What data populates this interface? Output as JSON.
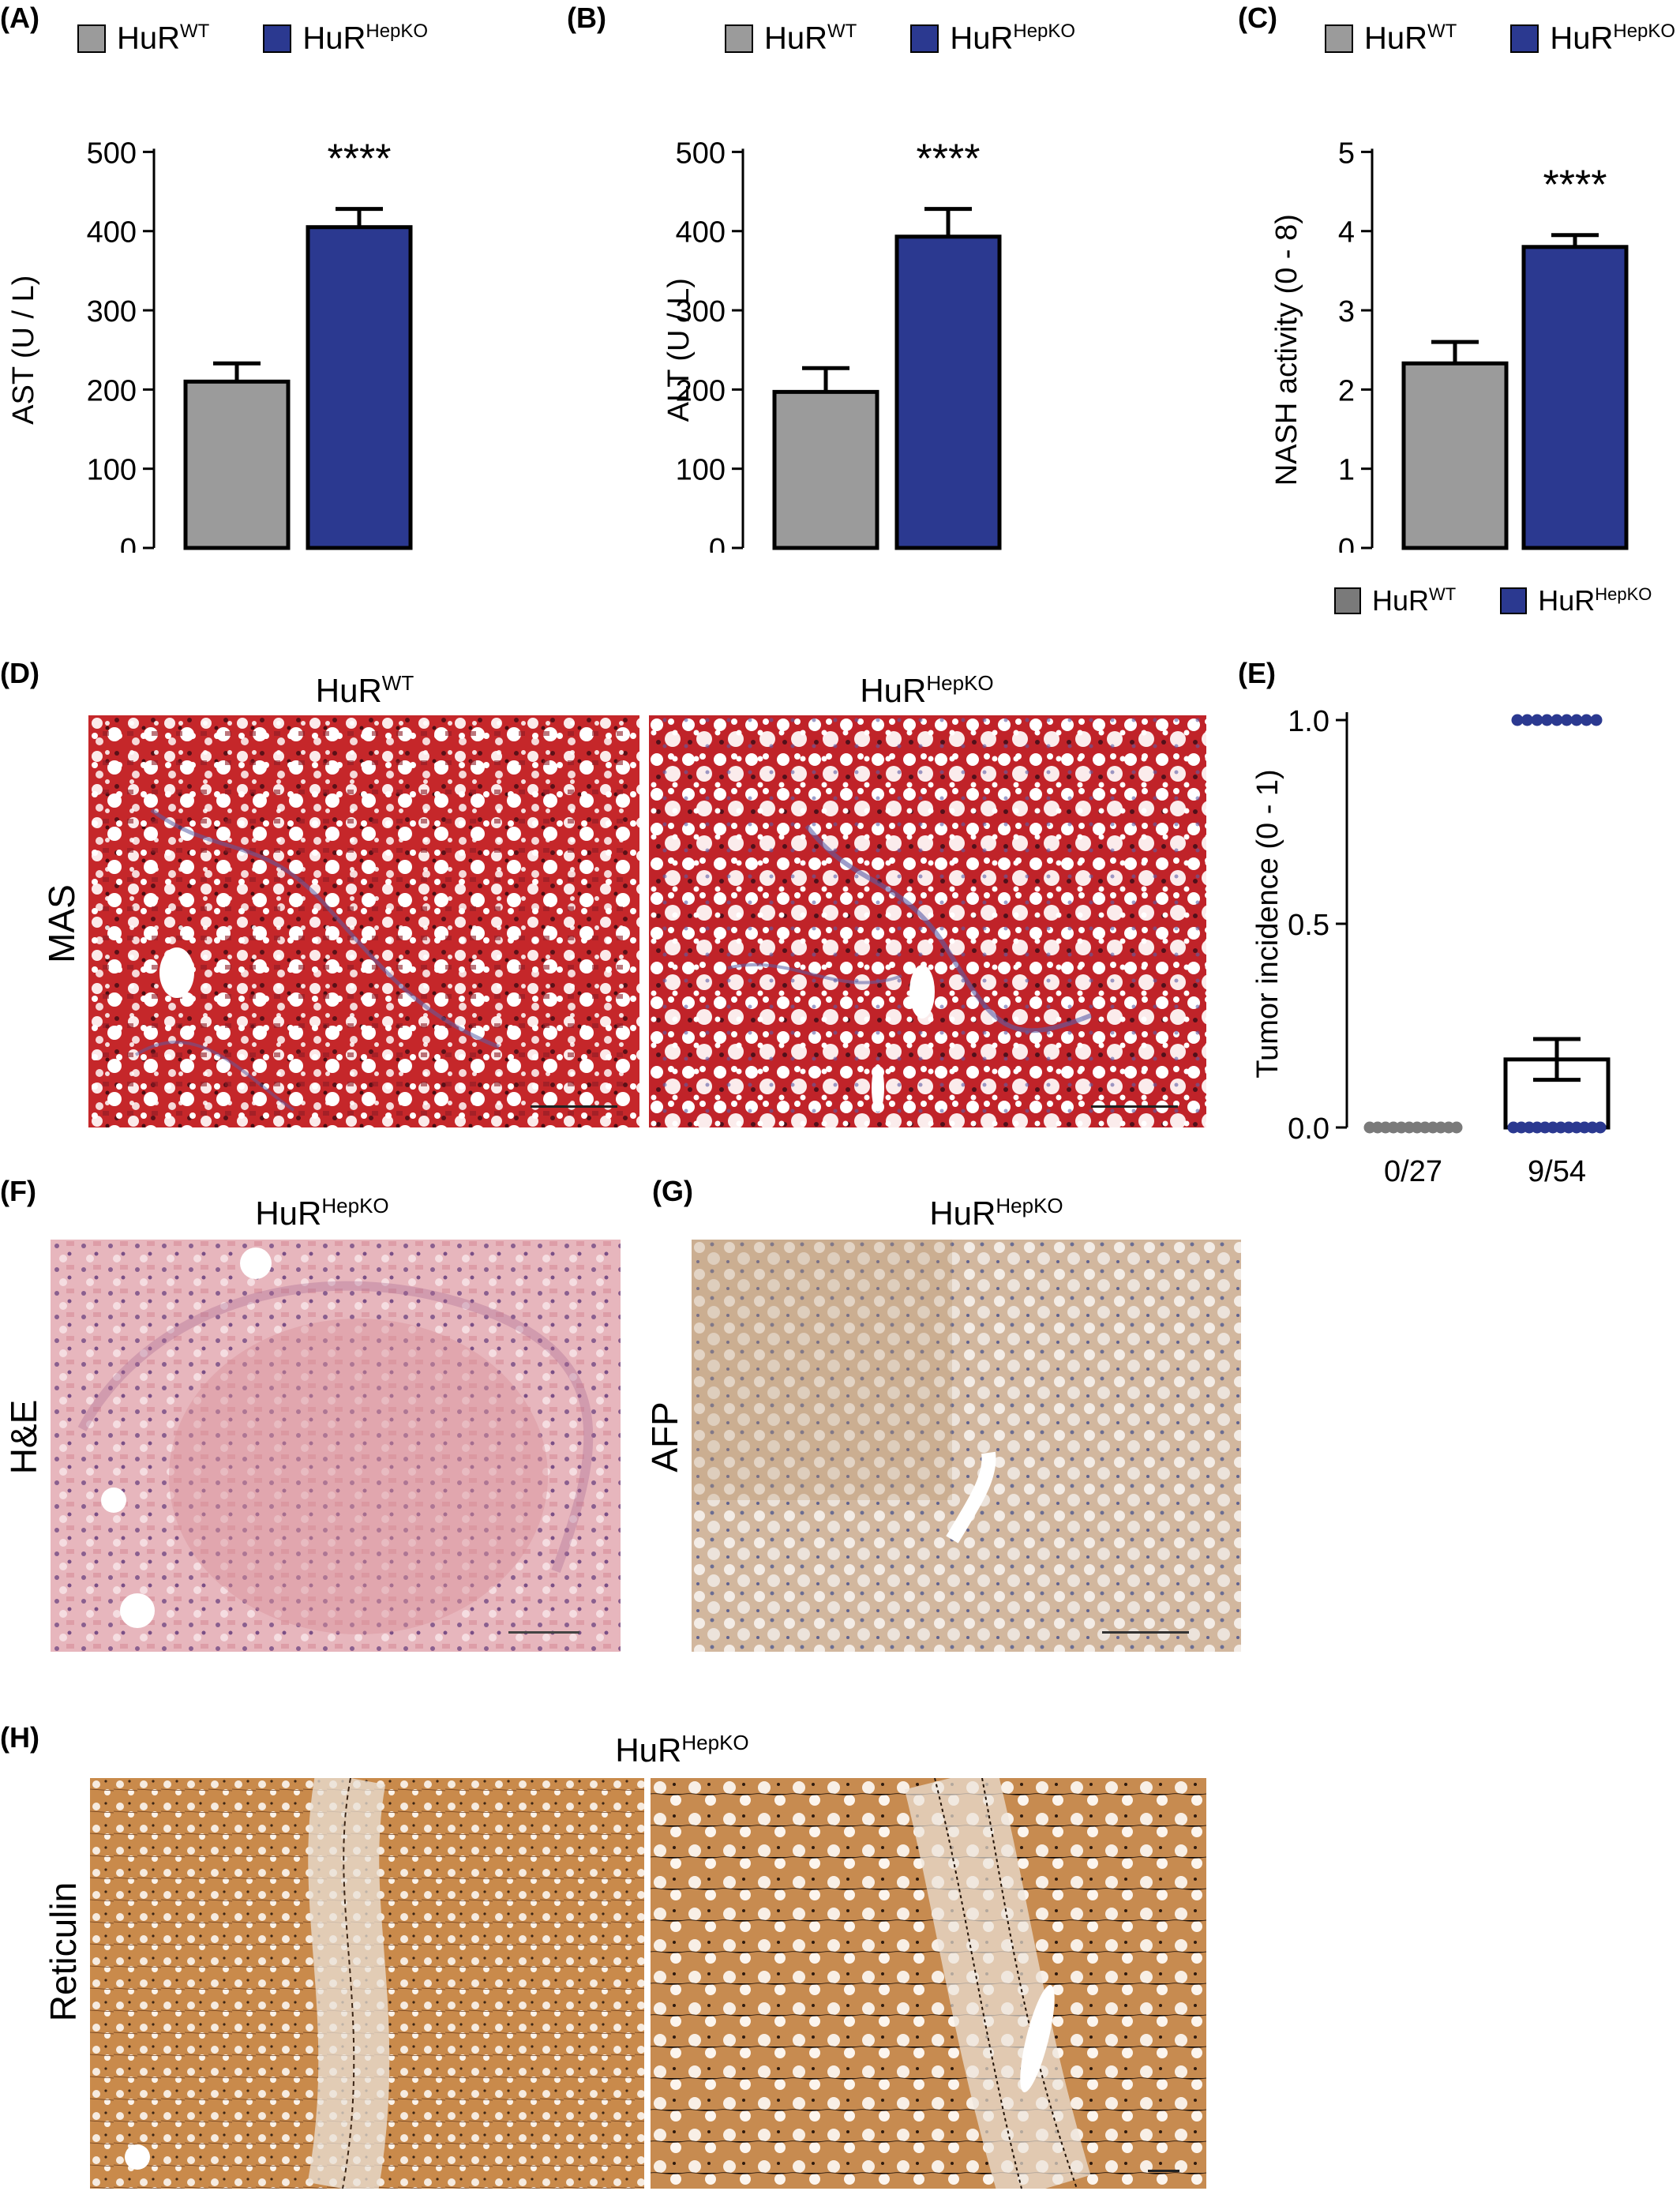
{
  "legend": {
    "wt_base": "HuR",
    "wt_sup": "WT",
    "ko_base": "HuR",
    "ko_sup": "HepKO"
  },
  "colors": {
    "wt": "#9b9b9b",
    "ko": "#2b3990",
    "e_wt_dots": "#7a7a7a",
    "e_ko_dots": "#2b3990"
  },
  "panels": {
    "A": {
      "label": "(A)"
    },
    "B": {
      "label": "(B)"
    },
    "C": {
      "label": "(C)"
    },
    "D": {
      "label": "(D)",
      "left_title_base": "HuR",
      "left_title_sup": "WT",
      "right_title_base": "HuR",
      "right_title_sup": "HepKO",
      "row_label": "MAS"
    },
    "E": {
      "label": "(E)"
    },
    "F": {
      "label": "(F)",
      "title_base": "HuR",
      "title_sup": "HepKO",
      "row_label": "H&E"
    },
    "G": {
      "label": "(G)",
      "title_base": "HuR",
      "title_sup": "HepKO",
      "row_label": "AFP"
    },
    "H": {
      "label": "(H)",
      "title_base": "HuR",
      "title_sup": "HepKO",
      "row_label": "Reticulin"
    }
  },
  "chart_data": [
    {
      "panel": "A",
      "type": "bar",
      "categories": [
        "HuR WT",
        "HuR HepKO"
      ],
      "values": [
        210,
        405
      ],
      "errors": [
        23,
        23
      ],
      "ylabel": "AST (U / L)",
      "ylim": [
        0,
        500
      ],
      "yticks": [
        0,
        100,
        200,
        300,
        400,
        500
      ],
      "significance": "****"
    },
    {
      "panel": "B",
      "type": "bar",
      "categories": [
        "HuR WT",
        "HuR HepKO"
      ],
      "values": [
        197,
        393
      ],
      "errors": [
        30,
        35
      ],
      "ylabel": "ALT (U / L)",
      "ylim": [
        0,
        500
      ],
      "yticks": [
        0,
        100,
        200,
        300,
        400,
        500
      ],
      "significance": "****"
    },
    {
      "panel": "C",
      "type": "bar",
      "categories": [
        "HuR WT",
        "HuR HepKO"
      ],
      "values": [
        2.33,
        3.8
      ],
      "errors": [
        0.27,
        0.15
      ],
      "ylabel": "NASH activity (0 - 8)",
      "ylim": [
        0,
        5
      ],
      "yticks": [
        0,
        1,
        2,
        3,
        4,
        5
      ],
      "significance": "****"
    },
    {
      "panel": "E",
      "type": "scatter",
      "categories": [
        "0/27",
        "9/54"
      ],
      "bar_values": [
        0,
        0.167
      ],
      "errors": [
        0,
        0.05
      ],
      "dots": [
        {
          "x": "0/27",
          "y": 0,
          "group": "HuR WT",
          "count": 27
        },
        {
          "x": "9/54",
          "y": 0,
          "group": "HuR HepKO",
          "count": 45
        },
        {
          "x": "9/54",
          "y": 1,
          "group": "HuR HepKO",
          "count": 9
        }
      ],
      "ylabel": "Tumor incidence (0 - 1)",
      "ylim": [
        0,
        1
      ],
      "yticks": [
        "0.0",
        "0.5",
        "1.0"
      ],
      "significance": "*"
    }
  ]
}
